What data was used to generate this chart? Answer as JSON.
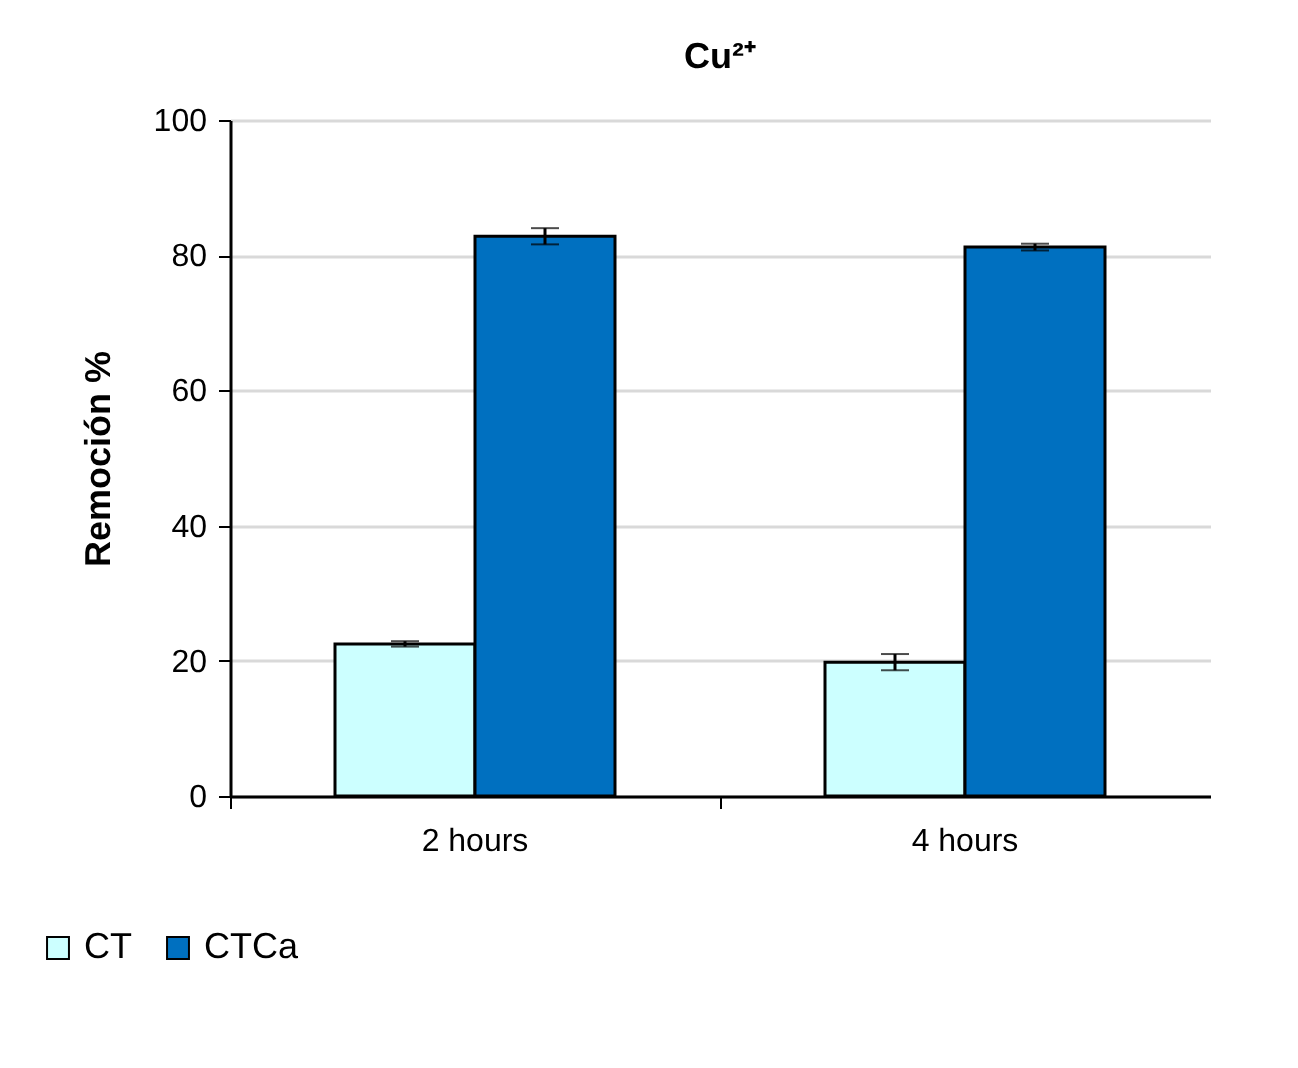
{
  "chart_data": {
    "type": "bar",
    "title": "Cu²⁺",
    "ylabel": "Remoción %",
    "categories": [
      "2 hours",
      "4 hours"
    ],
    "series": [
      {
        "name": "CT",
        "color": "#ccffff",
        "values": [
          22.5,
          19.8
        ],
        "errors": [
          0.4,
          1.2
        ]
      },
      {
        "name": "CTCa",
        "color": "#0070c0",
        "values": [
          82.8,
          81.2
        ],
        "errors": [
          1.2,
          0.5
        ]
      }
    ],
    "ylim": [
      0,
      100
    ],
    "yticks": [
      0,
      20,
      40,
      60,
      80,
      100
    ],
    "grid": "y",
    "legend": "bottom left"
  }
}
